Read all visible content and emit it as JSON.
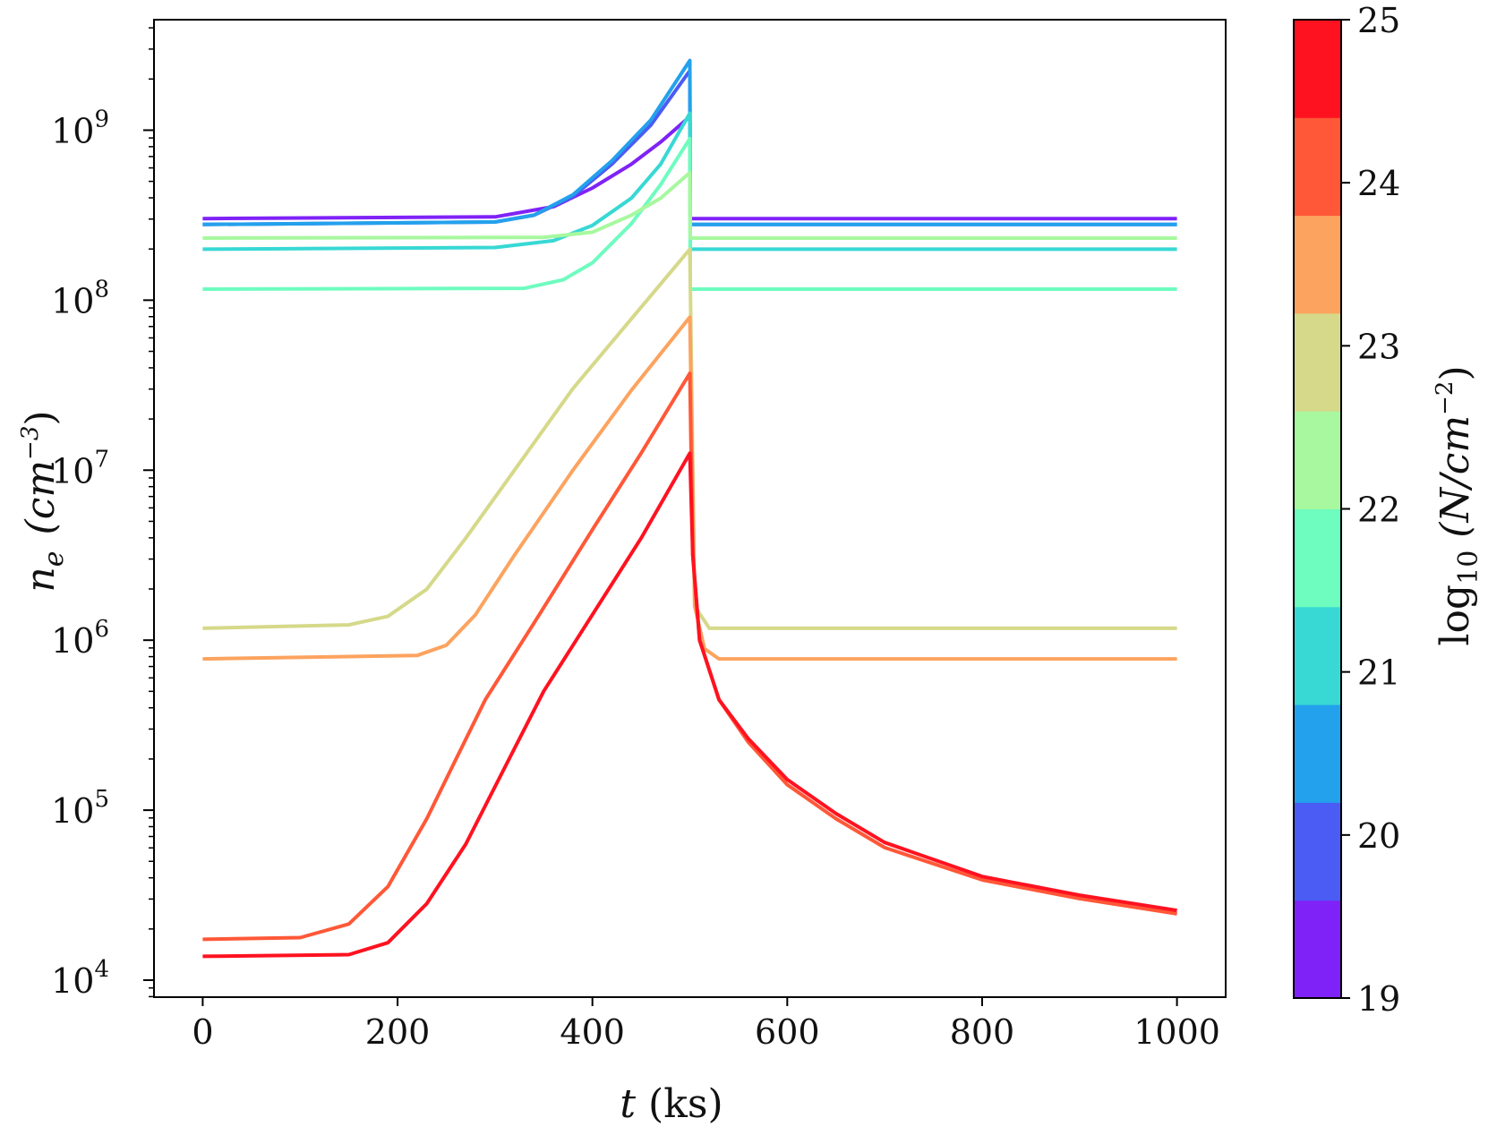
{
  "chart_data": {
    "type": "line",
    "title": "",
    "xlabel": "t (ks)",
    "ylabel": "n_e (cm^-3)",
    "xlim": [
      -50,
      1050
    ],
    "ylim_log10": [
      3.9,
      9.65
    ],
    "yscale": "log",
    "xticks": [
      0,
      200,
      400,
      600,
      800,
      1000
    ],
    "yticks": [
      {
        "exp": 4,
        "base": "10",
        "sup": "4"
      },
      {
        "exp": 5,
        "base": "10",
        "sup": "5"
      },
      {
        "exp": 6,
        "base": "10",
        "sup": "6"
      },
      {
        "exp": 7,
        "base": "10",
        "sup": "7"
      },
      {
        "exp": 8,
        "base": "10",
        "sup": "8"
      },
      {
        "exp": 9,
        "base": "10",
        "sup": "9"
      }
    ],
    "labels": {
      "x_italic": "t",
      "x_units": " (ks)",
      "y_italic": "n",
      "y_sub": "e",
      "y_unit_pre": "(cm",
      "y_unit_sup": "−3",
      "y_unit_post": ")"
    },
    "colorbar": {
      "label_pre": "log",
      "label_sub": "10",
      "label_mid": " (N/cm",
      "label_sup": "−2",
      "label_post": ")",
      "range": [
        19,
        25
      ],
      "ticks": [
        "19",
        "20",
        "21",
        "22",
        "23",
        "24",
        "25"
      ],
      "bands": [
        "#7f22f7",
        "#4a5cf3",
        "#23a1ec",
        "#38d8d4",
        "#6efcbf",
        "#a7f89e",
        "#d5d989",
        "#fca35f",
        "#ff5838",
        "#ff1220"
      ]
    },
    "series": [
      {
        "name": "N=1e19",
        "color": "#7f22f7",
        "points": [
          [
            0,
            8.48
          ],
          [
            300,
            8.49
          ],
          [
            360,
            8.55
          ],
          [
            400,
            8.66
          ],
          [
            440,
            8.8
          ],
          [
            470,
            8.93
          ],
          [
            500,
            9.08
          ],
          [
            500.5,
            8.48
          ],
          [
            1000,
            8.48
          ]
        ]
      },
      {
        "name": "N=1e20",
        "color": "#4a5cf3",
        "points": [
          [
            0,
            8.445
          ],
          [
            300,
            8.46
          ],
          [
            340,
            8.5
          ],
          [
            380,
            8.61
          ],
          [
            420,
            8.8
          ],
          [
            460,
            9.03
          ],
          [
            500,
            9.35
          ],
          [
            500.5,
            8.445
          ],
          [
            1000,
            8.445
          ]
        ]
      },
      {
        "name": "N=1e21",
        "color": "#23a1ec",
        "points": [
          [
            0,
            8.445
          ],
          [
            300,
            8.46
          ],
          [
            340,
            8.5
          ],
          [
            380,
            8.62
          ],
          [
            420,
            8.82
          ],
          [
            460,
            9.06
          ],
          [
            500,
            9.41
          ],
          [
            500.5,
            8.445
          ],
          [
            1000,
            8.445
          ]
        ]
      },
      {
        "name": "N=1e21.5",
        "color": "#38d8d4",
        "points": [
          [
            0,
            8.3
          ],
          [
            300,
            8.31
          ],
          [
            360,
            8.35
          ],
          [
            400,
            8.44
          ],
          [
            440,
            8.6
          ],
          [
            470,
            8.8
          ],
          [
            500,
            9.1
          ],
          [
            500.5,
            8.3
          ],
          [
            1000,
            8.3
          ]
        ]
      },
      {
        "name": "N=1e22",
        "color": "#6efcbf",
        "points": [
          [
            0,
            8.065
          ],
          [
            330,
            8.07
          ],
          [
            370,
            8.12
          ],
          [
            400,
            8.22
          ],
          [
            440,
            8.45
          ],
          [
            470,
            8.68
          ],
          [
            500,
            8.95
          ],
          [
            500.5,
            8.065
          ],
          [
            1000,
            8.065
          ]
        ]
      },
      {
        "name": "N=1e22.5",
        "color": "#a7f89e",
        "points": [
          [
            0,
            8.365
          ],
          [
            350,
            8.37
          ],
          [
            400,
            8.4
          ],
          [
            440,
            8.5
          ],
          [
            470,
            8.6
          ],
          [
            500,
            8.75
          ],
          [
            500.5,
            8.365
          ],
          [
            1000,
            8.365
          ]
        ]
      },
      {
        "name": "N=1e23",
        "color": "#d5d989",
        "points": [
          [
            0,
            6.07
          ],
          [
            150,
            6.09
          ],
          [
            190,
            6.14
          ],
          [
            230,
            6.3
          ],
          [
            270,
            6.6
          ],
          [
            320,
            7.0
          ],
          [
            380,
            7.48
          ],
          [
            440,
            7.89
          ],
          [
            500,
            8.3
          ],
          [
            505,
            6.2
          ],
          [
            520,
            6.07
          ],
          [
            1000,
            6.07
          ]
        ]
      },
      {
        "name": "N=1e23.5",
        "color": "#fca35f",
        "points": [
          [
            0,
            5.89
          ],
          [
            220,
            5.91
          ],
          [
            250,
            5.97
          ],
          [
            280,
            6.15
          ],
          [
            320,
            6.5
          ],
          [
            380,
            7.0
          ],
          [
            440,
            7.47
          ],
          [
            500,
            7.9
          ],
          [
            505,
            6.2
          ],
          [
            515,
            5.95
          ],
          [
            530,
            5.89
          ],
          [
            1000,
            5.89
          ]
        ]
      },
      {
        "name": "N=1e24",
        "color": "#ff5838",
        "points": [
          [
            0,
            4.24
          ],
          [
            100,
            4.25
          ],
          [
            150,
            4.33
          ],
          [
            190,
            4.55
          ],
          [
            230,
            4.95
          ],
          [
            260,
            5.3
          ],
          [
            290,
            5.65
          ],
          [
            340,
            6.1
          ],
          [
            400,
            6.65
          ],
          [
            450,
            7.1
          ],
          [
            500,
            7.57
          ],
          [
            503,
            6.5
          ],
          [
            510,
            6.0
          ],
          [
            530,
            5.65
          ],
          [
            560,
            5.4
          ],
          [
            600,
            5.15
          ],
          [
            650,
            4.95
          ],
          [
            700,
            4.78
          ],
          [
            800,
            4.59
          ],
          [
            900,
            4.48
          ],
          [
            1000,
            4.39
          ]
        ]
      },
      {
        "name": "N=1e25",
        "color": "#ff1220",
        "points": [
          [
            0,
            4.14
          ],
          [
            150,
            4.15
          ],
          [
            190,
            4.22
          ],
          [
            230,
            4.45
          ],
          [
            270,
            4.8
          ],
          [
            310,
            5.25
          ],
          [
            350,
            5.7
          ],
          [
            400,
            6.15
          ],
          [
            450,
            6.6
          ],
          [
            500,
            7.1
          ],
          [
            503,
            6.5
          ],
          [
            510,
            6.0
          ],
          [
            530,
            5.65
          ],
          [
            560,
            5.42
          ],
          [
            600,
            5.18
          ],
          [
            650,
            4.98
          ],
          [
            700,
            4.81
          ],
          [
            800,
            4.61
          ],
          [
            900,
            4.5
          ],
          [
            1000,
            4.41
          ]
        ]
      }
    ]
  }
}
